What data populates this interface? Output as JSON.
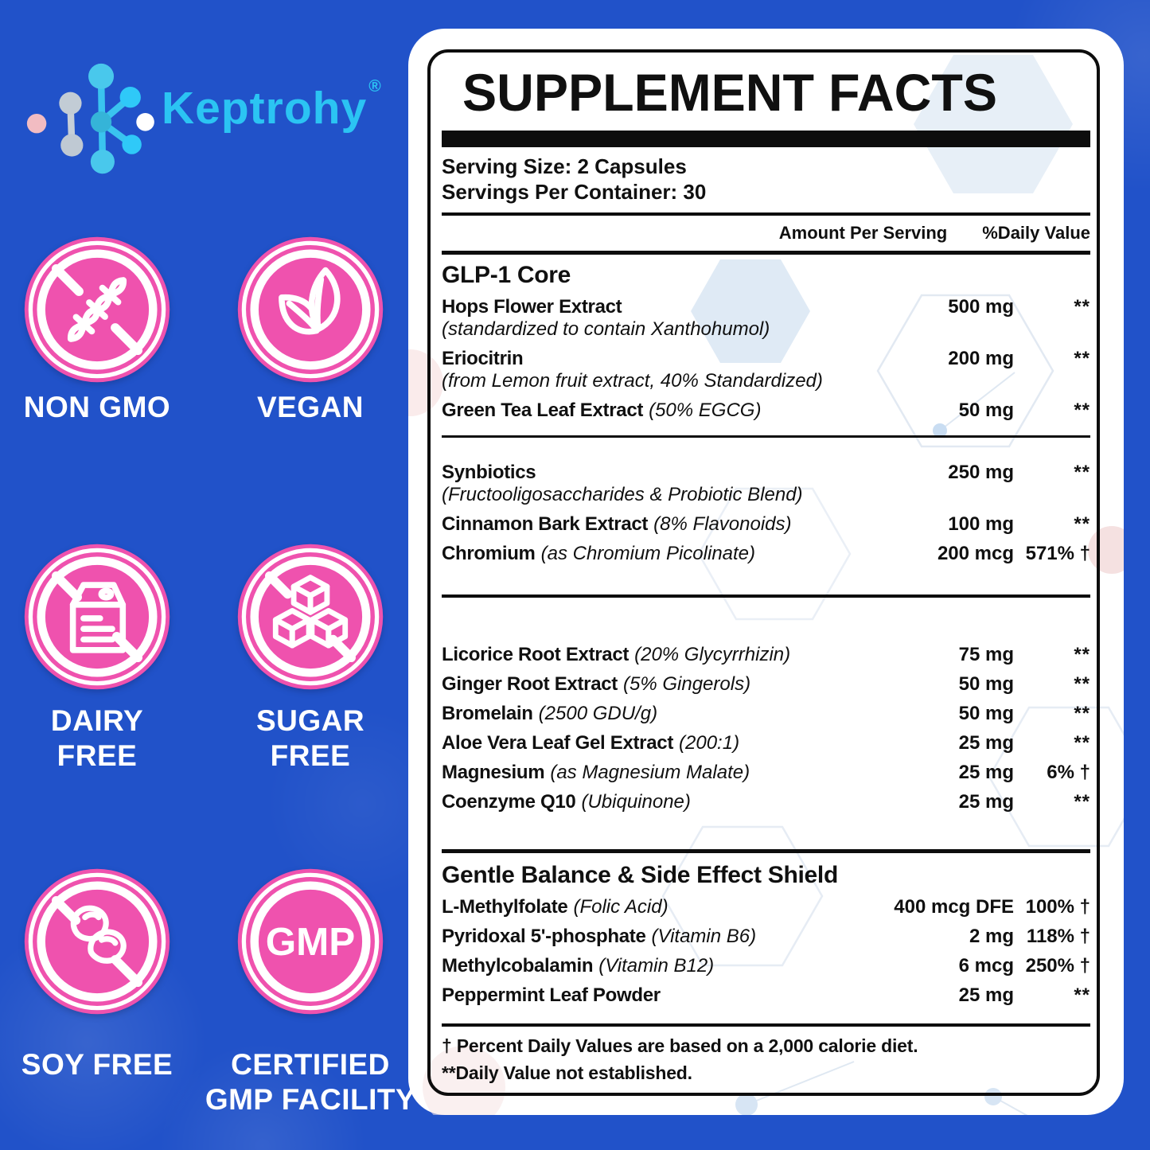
{
  "logo": {
    "brand": "Keptrohy",
    "registered": "®"
  },
  "badges": [
    {
      "icon": "no-gmo-dna-crossed-icon",
      "lines": [
        "NON GMO"
      ]
    },
    {
      "icon": "vegan-leaf-icon",
      "lines": [
        "VEGAN"
      ]
    },
    {
      "icon": "dairy-free-milk-carton-crossed-icon",
      "lines": [
        "DAIRY",
        "FREE"
      ]
    },
    {
      "icon": "sugar-free-cubes-crossed-icon",
      "lines": [
        "SUGAR",
        "FREE"
      ]
    },
    {
      "icon": "soy-free-beans-crossed-icon",
      "lines": [
        "SOY FREE"
      ]
    },
    {
      "icon": "gmp-certified-icon",
      "icon_text": "GMP",
      "lines": [
        "CERTIFIED",
        "GMP FACILITY"
      ]
    }
  ],
  "panel": {
    "title": "SUPPLEMENT FACTS",
    "serving_size": "Serving Size: 2 Capsules",
    "servings_per_container": "Servings Per Container: 30",
    "columns": {
      "amount": "Amount Per Serving",
      "daily_value": "%Daily Value"
    },
    "blocks": [
      {
        "header": "GLP-1 Core",
        "rows": [
          {
            "name": "Hops Flower Extract",
            "paren": "",
            "sub": "(standardized to contain Xanthohumol)",
            "amount": "500 mg",
            "dv": "**"
          },
          {
            "name": "Eriocitrin",
            "paren": "",
            "sub": "(from Lemon fruit extract, 40% Standardized)",
            "amount": "200 mg",
            "dv": "**"
          },
          {
            "name": "Green Tea Leaf Extract",
            "paren": "(50% EGCG)",
            "sub": "",
            "amount": "50 mg",
            "dv": "**"
          }
        ],
        "space_above_divider": 8,
        "divider": "thin",
        "gap_after": 30
      },
      {
        "header": "",
        "rows": [
          {
            "name": "Synbiotics",
            "paren": "",
            "sub": "(Fructooligosaccharides & Probiotic Blend)",
            "amount": "250 mg",
            "dv": "**"
          },
          {
            "name": "Cinnamon Bark Extract",
            "paren": "(8% Flavonoids)",
            "sub": "",
            "amount": "100 mg",
            "dv": "**"
          },
          {
            "name": "Chromium",
            "paren": "(as Chromium Picolinate)",
            "sub": "",
            "amount": "200 mcg",
            "dv": "571% †"
          }
        ],
        "space_above_divider": 28,
        "divider": "med",
        "gap_after": 58
      },
      {
        "header": "",
        "rows": [
          {
            "name": "Licorice Root Extract",
            "paren": "(20% Glycyrrhizin)",
            "sub": "",
            "amount": "75 mg",
            "dv": "**"
          },
          {
            "name": "Ginger Root Extract",
            "paren": "(5% Gingerols)",
            "sub": "",
            "amount": "50 mg",
            "dv": "**"
          },
          {
            "name": "Bromelain",
            "paren": "(2500 GDU/g)",
            "sub": "",
            "amount": "50 mg",
            "dv": "**"
          },
          {
            "name": "Aloe Vera Leaf Gel Extract",
            "paren": "(200:1)",
            "sub": "",
            "amount": "25 mg",
            "dv": "**"
          },
          {
            "name": "Magnesium",
            "paren": "(as Magnesium Malate)",
            "sub": "",
            "amount": "25 mg",
            "dv": "6% †"
          },
          {
            "name": "Coenzyme Q10",
            "paren": "(Ubiquinone)",
            "sub": "",
            "amount": "25 mg",
            "dv": "**"
          }
        ],
        "space_above_divider": 36,
        "divider": "thick",
        "gap_after": 2
      },
      {
        "header": "Gentle Balance & Side Effect Shield",
        "rows": [
          {
            "name": "L-Methylfolate",
            "paren": "(Folic Acid)",
            "sub": "",
            "amount": "400 mcg DFE",
            "dv": "100% †"
          },
          {
            "name": "Pyridoxal 5'-phosphate",
            "paren": "(Vitamin B6)",
            "sub": "",
            "amount": "2 mg",
            "dv": "118% †"
          },
          {
            "name": "Methylcobalamin",
            "paren": "(Vitamin B12)",
            "sub": "",
            "amount": "6 mcg",
            "dv": "250% †"
          },
          {
            "name": "Peppermint Leaf Powder",
            "paren": "",
            "sub": "",
            "amount": "25 mg",
            "dv": "**"
          }
        ],
        "space_above_divider": 12,
        "divider": "med",
        "gap_after": 0
      }
    ],
    "footnotes": [
      "† Percent Daily Values are based on a 2,000 calorie diet.",
      "**Daily Value not established."
    ]
  },
  "colors": {
    "background_blue": "#2152c9",
    "badge_pink": "#ef52ae",
    "brand_cyan": "#2bc4f3",
    "panel_white": "#ffffff",
    "text_black": "#0d0d0d"
  }
}
